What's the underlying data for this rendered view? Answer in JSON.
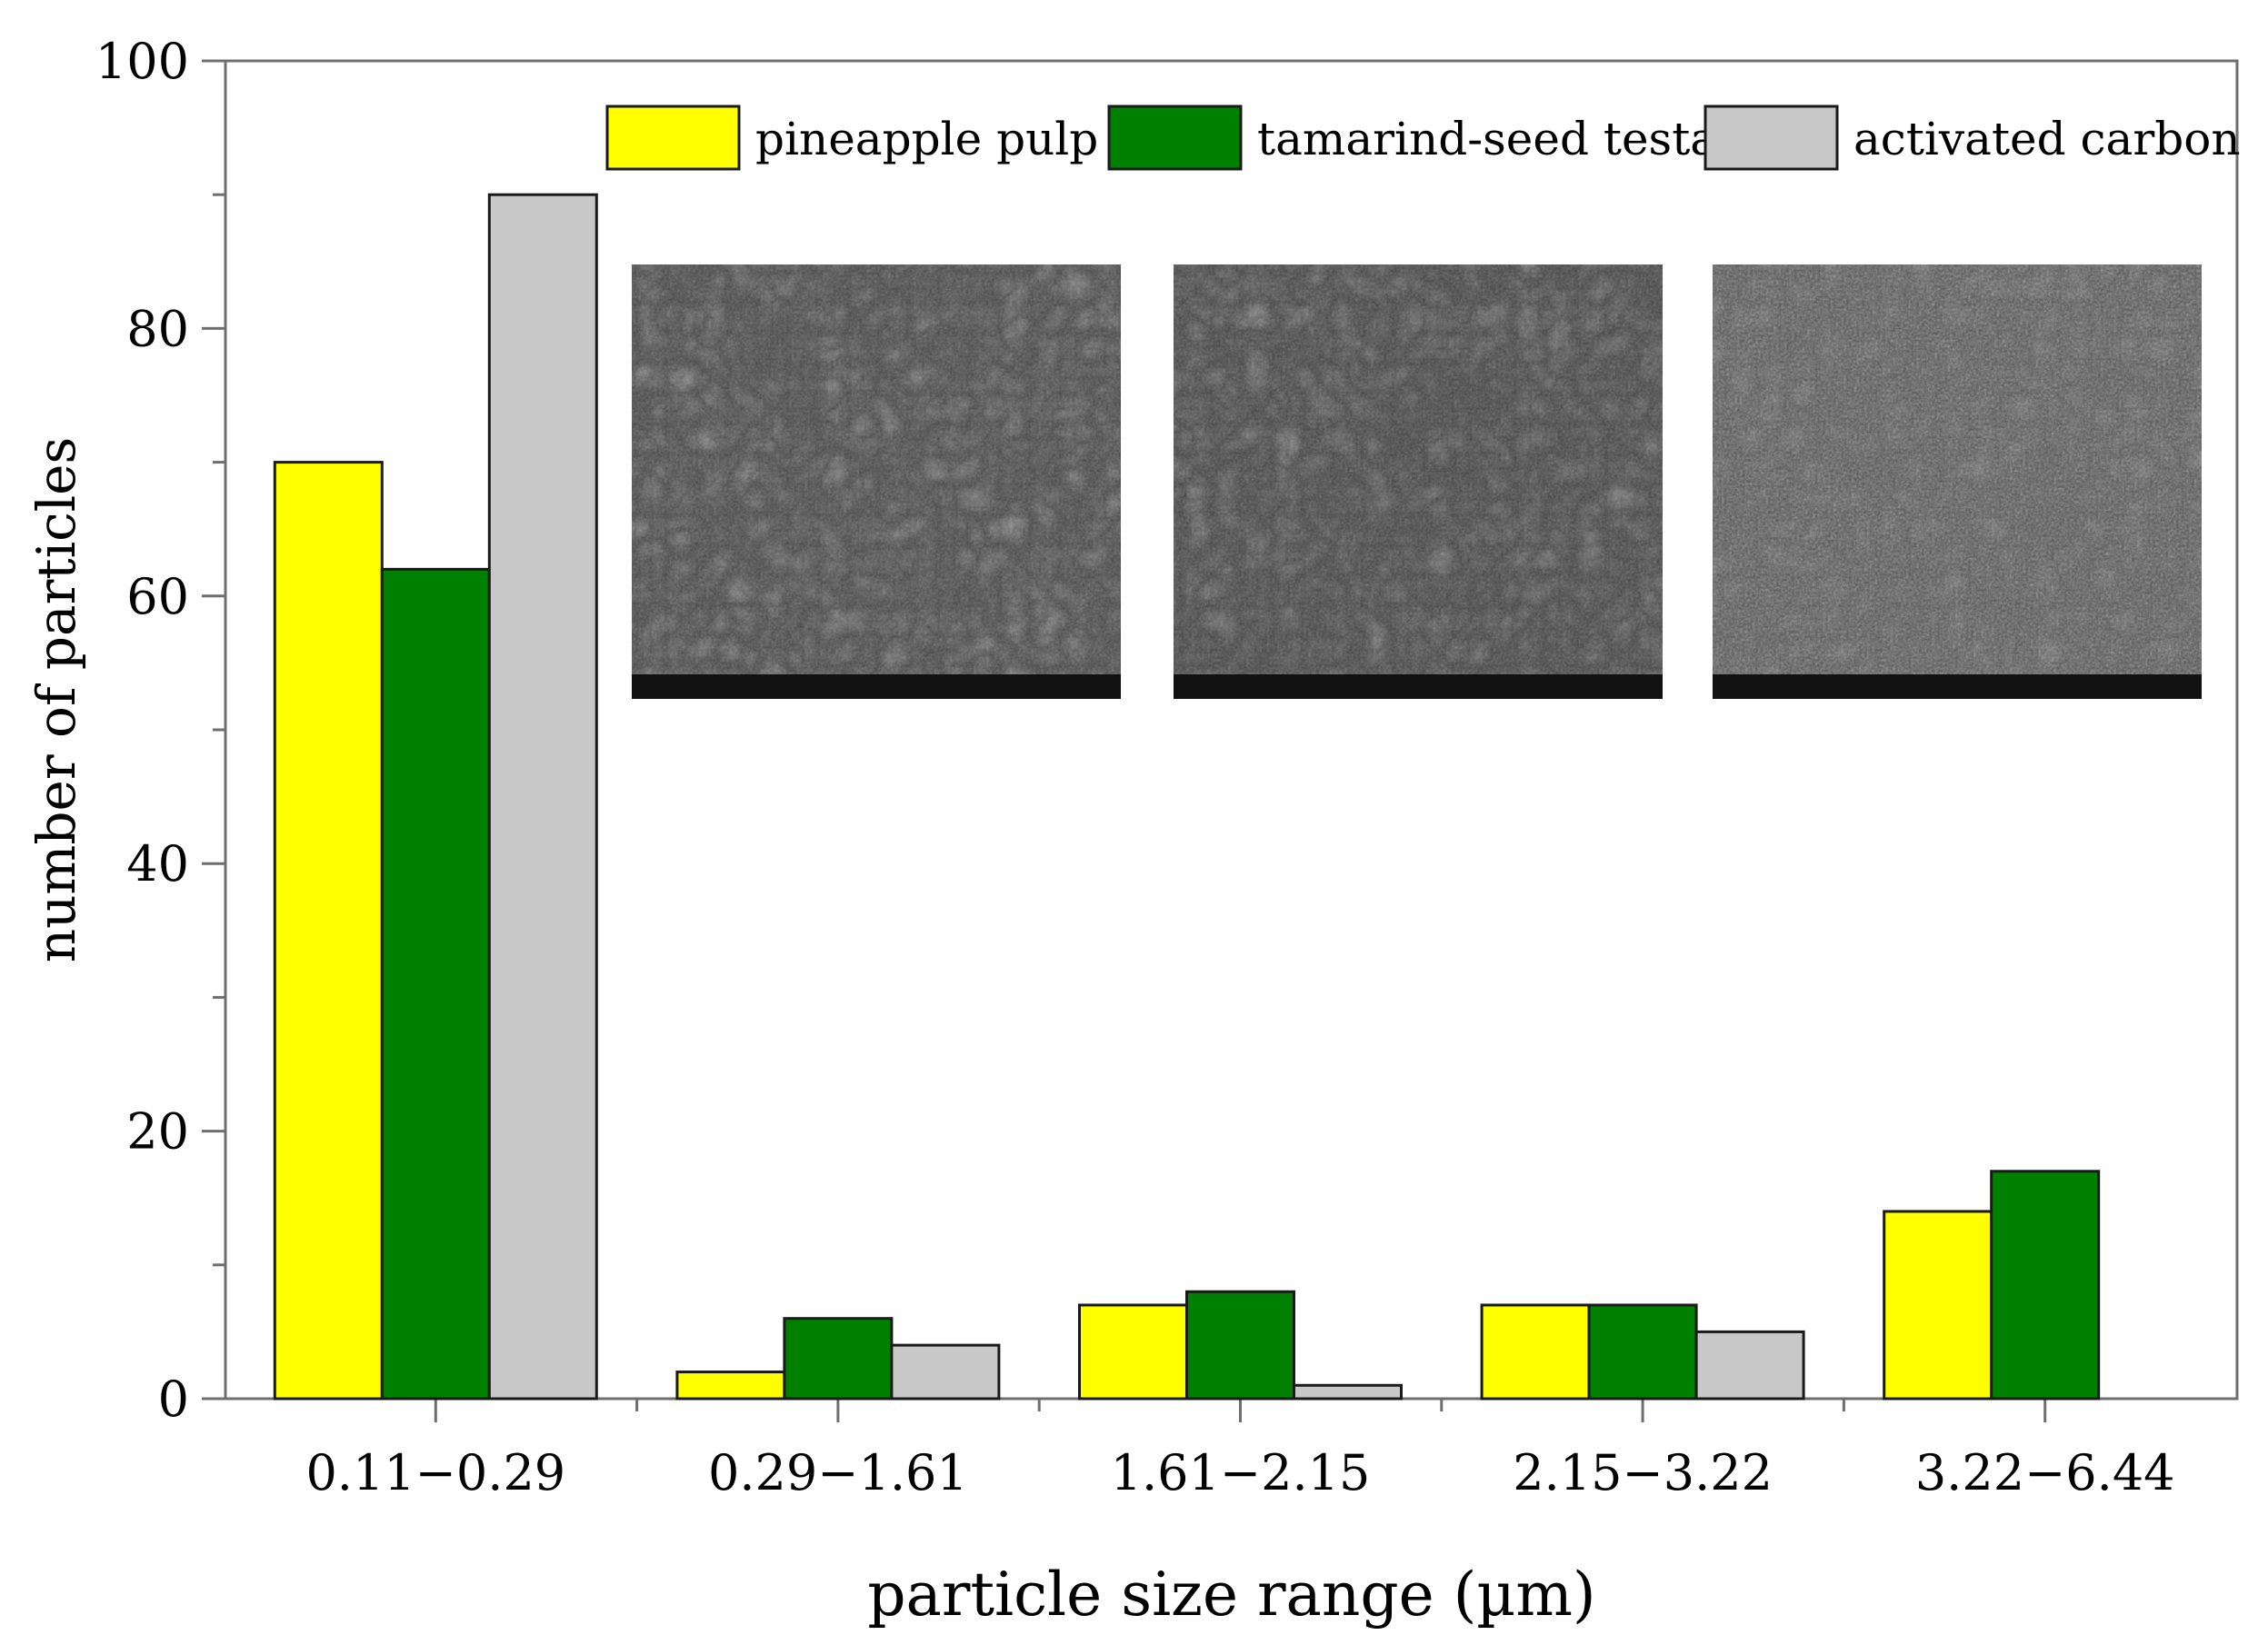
{
  "chart_data": {
    "type": "bar",
    "title": "",
    "xlabel": "particle size range (µm)",
    "ylabel": "number of particles",
    "categories": [
      "0.11−0.29",
      "0.29−1.61",
      "1.61−2.15",
      "2.15−3.22",
      "3.22−6.44"
    ],
    "series": [
      {
        "name": "pineapple pulp",
        "color": "#ffff00",
        "values": [
          70,
          2,
          7,
          7,
          14
        ]
      },
      {
        "name": "tamarind-seed testa",
        "color": "#008000",
        "values": [
          62,
          6,
          8,
          7,
          17
        ]
      },
      {
        "name": "activated carbon",
        "color": "#c8c8c8",
        "values": [
          90,
          4,
          1,
          5,
          0
        ]
      }
    ],
    "ylim": [
      0,
      100
    ],
    "yticks": [
      0,
      20,
      40,
      60,
      80,
      100
    ],
    "grid": false,
    "legend_position": "top-right",
    "inset_images": [
      "sem-micrograph-pineapple-pulp",
      "sem-micrograph-tamarind-seed-testa",
      "sem-micrograph-activated-carbon"
    ]
  }
}
